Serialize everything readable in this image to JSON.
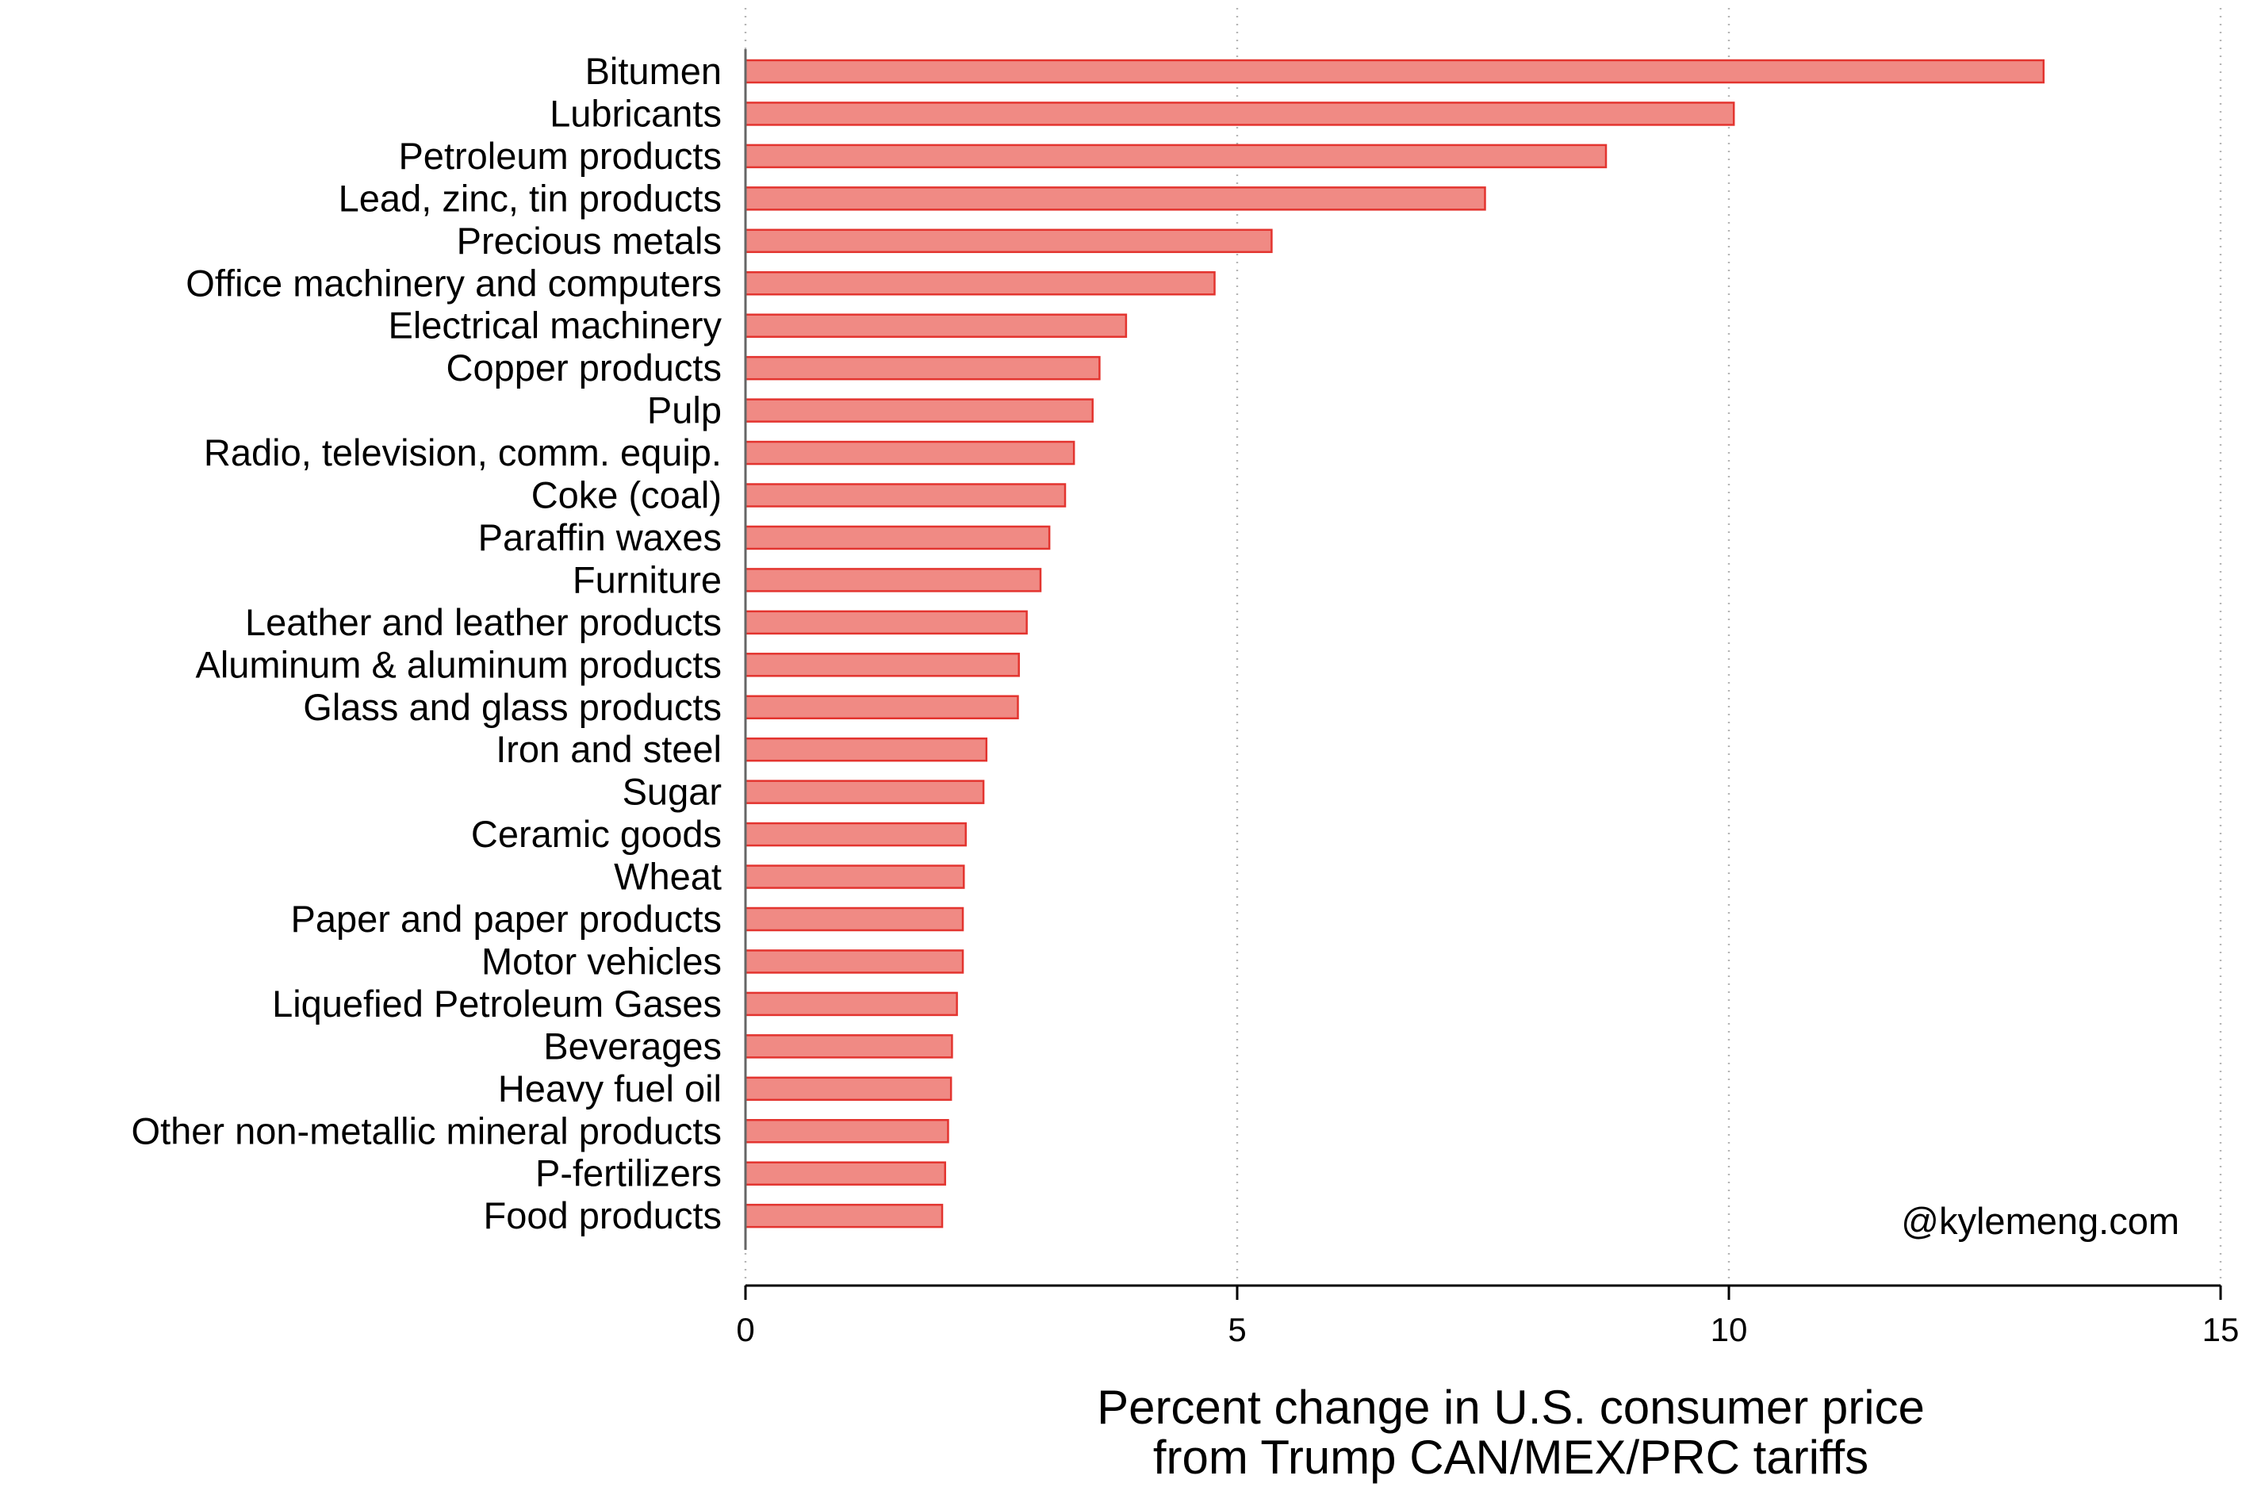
{
  "chart_data": {
    "type": "bar",
    "orientation": "horizontal",
    "categories": [
      "Bitumen",
      "Lubricants",
      "Petroleum products",
      "Lead, zinc, tin products",
      "Precious metals",
      "Office machinery and computers",
      "Electrical machinery",
      "Copper products",
      "Pulp",
      "Radio, television, comm. equip.",
      "Coke (coal)",
      "Paraffin waxes",
      "Furniture",
      "Leather and leather products",
      "Aluminum & aluminum products",
      "Glass and glass products",
      "Iron and steel",
      "Sugar",
      "Ceramic goods",
      "Wheat",
      "Paper and paper products",
      "Motor vehicles",
      "Liquefied Petroleum Gases",
      "Beverages",
      "Heavy fuel oil",
      "Other non-metallic mineral products",
      "P-fertilizers",
      "Food products"
    ],
    "values": [
      13.2,
      10.05,
      8.75,
      7.52,
      5.35,
      4.77,
      3.87,
      3.6,
      3.53,
      3.34,
      3.25,
      3.09,
      3.0,
      2.86,
      2.78,
      2.77,
      2.45,
      2.42,
      2.24,
      2.22,
      2.21,
      2.21,
      2.15,
      2.1,
      2.09,
      2.06,
      2.03,
      2.0
    ],
    "title": "",
    "xlabel": [
      "Percent change in U.S. consumer price",
      "from Trump CAN/MEX/PRC tariffs"
    ],
    "ylabel": "",
    "xlim": [
      0,
      15
    ],
    "xticks": [
      0,
      5,
      10,
      15
    ],
    "xtick_labels": [
      "0",
      "5",
      "10",
      "15"
    ],
    "grid": "vertical dotted",
    "legend": "none",
    "bar_fill": "#f08a84",
    "bar_stroke": "#e3342f",
    "annotation": "@kylemeng.com"
  }
}
